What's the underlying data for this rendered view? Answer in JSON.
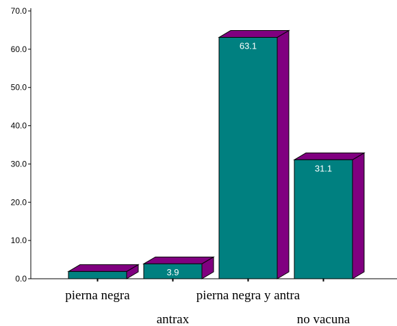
{
  "chart_data": {
    "type": "bar",
    "categories": [
      "pierna negra",
      "antrax",
      "pierna negra y antra",
      "no vacuna"
    ],
    "values": [
      1.9,
      3.9,
      63.1,
      31.1
    ],
    "data_labels": [
      "",
      "3.9",
      "63.1",
      "31.1"
    ],
    "yticks": [
      "0.0",
      "10.0",
      "20.0",
      "30.0",
      "40.0",
      "50.0",
      "60.0",
      "70.0"
    ],
    "ylim": [
      0,
      70
    ],
    "grid": false,
    "legend": "none",
    "three_d": true
  },
  "colors": {
    "front": "#008080",
    "side": "#800080",
    "top": "#800080",
    "axis": "#000000",
    "data_label": "#ffffff"
  }
}
